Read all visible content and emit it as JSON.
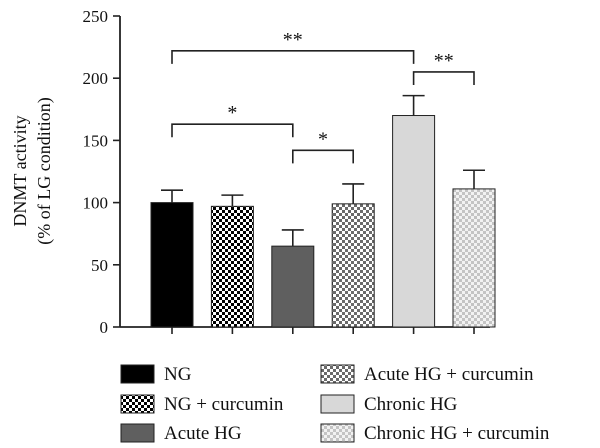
{
  "chart_data": {
    "type": "bar",
    "title": "",
    "xlabel": "",
    "ylabel": [
      "DNMT activity",
      "(% of LG condition)"
    ],
    "ylim": [
      0,
      250
    ],
    "yticks": [
      0,
      50,
      100,
      150,
      200,
      250
    ],
    "grid": false,
    "legend_position": "bottom",
    "categories": [
      "NG",
      "NG + curcumin",
      "Acute HG",
      "Acute HG + curcumin",
      "Chronic HG",
      "Chronic HG + curcumin"
    ],
    "values": [
      100,
      97,
      65,
      99,
      170,
      111
    ],
    "errors": [
      10,
      9,
      13,
      16,
      16,
      15
    ],
    "fills": [
      {
        "pattern": "solid",
        "color": "#000000"
      },
      {
        "pattern": "checker-fine",
        "color": "#000000"
      },
      {
        "pattern": "solid",
        "color": "#5f5f5f"
      },
      {
        "pattern": "checker-medium",
        "color": "#6a6a6a"
      },
      {
        "pattern": "solid",
        "color": "#d8d8d8"
      },
      {
        "pattern": "checker-light",
        "color": "#bdbdbd"
      }
    ],
    "significance": [
      {
        "from": 0,
        "to": 2,
        "label": "*",
        "y": 163
      },
      {
        "from": 2,
        "to": 3,
        "label": "*",
        "y": 142
      },
      {
        "from": 0,
        "to": 4,
        "label": "**",
        "y": 222
      },
      {
        "from": 4,
        "to": 5,
        "label": "**",
        "y": 205
      }
    ]
  }
}
